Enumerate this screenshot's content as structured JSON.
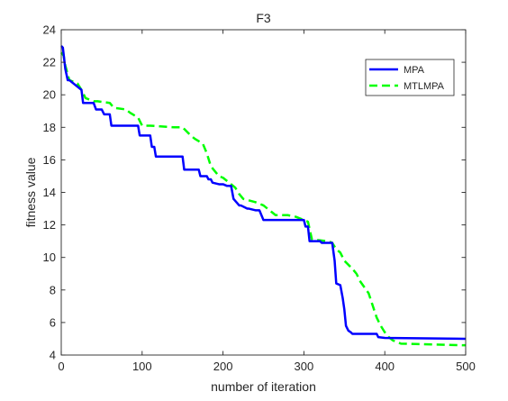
{
  "chart_data": {
    "type": "line",
    "title": "F3",
    "xlabel": "number of iteration",
    "ylabel": "fitness value",
    "xlim": [
      0,
      500
    ],
    "ylim": [
      4,
      24
    ],
    "xticks": [
      0,
      100,
      200,
      300,
      400,
      500
    ],
    "yticks": [
      4,
      6,
      8,
      10,
      12,
      14,
      16,
      18,
      20,
      22,
      24
    ],
    "grid": false,
    "legend_position": "top-right",
    "series": [
      {
        "name": "MPA",
        "color": "#0000ff",
        "style": "solid",
        "x": [
          0,
          2,
          5,
          8,
          10,
          25,
          27,
          40,
          43,
          50,
          53,
          60,
          62,
          95,
          97,
          110,
          112,
          115,
          117,
          150,
          152,
          170,
          172,
          180,
          182,
          185,
          187,
          195,
          200,
          205,
          210,
          213,
          220,
          222,
          230,
          232,
          240,
          245,
          250,
          252,
          300,
          302,
          305,
          307,
          320,
          322,
          335,
          338,
          340,
          345,
          348,
          350,
          352,
          355,
          358,
          360,
          365,
          390,
          392,
          400,
          500
        ],
        "y": [
          23.0,
          22.9,
          21.6,
          20.9,
          20.9,
          20.3,
          19.5,
          19.5,
          19.1,
          19.1,
          18.8,
          18.8,
          18.1,
          18.1,
          17.5,
          17.5,
          16.8,
          16.8,
          16.2,
          16.2,
          15.4,
          15.4,
          15.0,
          15.0,
          14.8,
          14.8,
          14.6,
          14.5,
          14.5,
          14.4,
          14.4,
          13.6,
          13.2,
          13.2,
          13.0,
          13.0,
          12.9,
          12.9,
          12.3,
          12.3,
          12.3,
          11.9,
          11.9,
          11.0,
          11.0,
          10.9,
          10.9,
          9.8,
          8.4,
          8.3,
          7.5,
          6.8,
          5.8,
          5.5,
          5.4,
          5.3,
          5.3,
          5.3,
          5.1,
          5.05,
          5.0
        ]
      },
      {
        "name": "MTLMPA",
        "color": "#00ff00",
        "style": "dashed",
        "x": [
          0,
          3,
          5,
          10,
          20,
          25,
          30,
          40,
          45,
          60,
          65,
          80,
          85,
          95,
          100,
          110,
          140,
          150,
          160,
          165,
          175,
          180,
          185,
          190,
          195,
          200,
          210,
          215,
          220,
          225,
          240,
          245,
          250,
          255,
          260,
          265,
          280,
          290,
          300,
          305,
          310,
          330,
          335,
          340,
          345,
          350,
          360,
          365,
          370,
          380,
          390,
          395,
          400,
          405,
          410,
          420,
          500
        ],
        "y": [
          22.6,
          22.4,
          21.8,
          20.9,
          20.7,
          20.3,
          19.8,
          19.6,
          19.6,
          19.5,
          19.2,
          19.1,
          18.9,
          18.6,
          18.1,
          18.1,
          18.0,
          18.0,
          17.5,
          17.3,
          17.0,
          16.4,
          15.6,
          15.3,
          15.0,
          14.9,
          14.5,
          14.3,
          13.9,
          13.6,
          13.4,
          13.3,
          13.2,
          13.0,
          12.8,
          12.6,
          12.6,
          12.5,
          12.3,
          12.2,
          11.1,
          11.0,
          10.9,
          10.5,
          10.3,
          9.8,
          9.3,
          9.0,
          8.5,
          7.8,
          6.3,
          5.8,
          5.4,
          5.1,
          4.9,
          4.7,
          4.6
        ]
      }
    ]
  }
}
